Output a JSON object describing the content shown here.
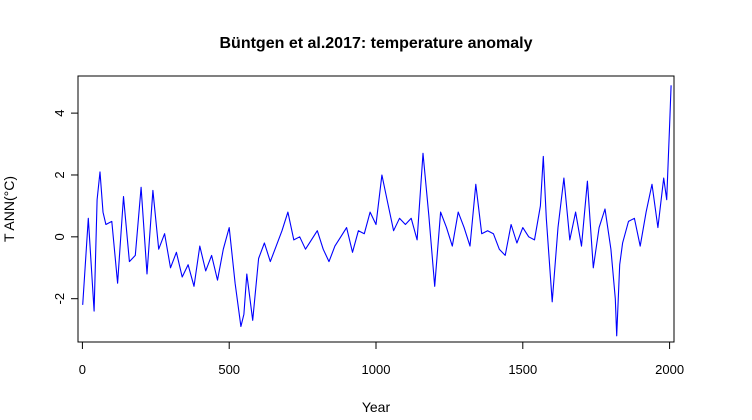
{
  "chart_data": {
    "type": "line",
    "title": "Büntgen et al.2017: temperature anomaly",
    "xlabel": "Year",
    "ylabel": "T ANN(°C)",
    "xlim": [
      -15,
      2015
    ],
    "ylim": [
      -3.4,
      5.2
    ],
    "x_ticks": [
      0,
      500,
      1000,
      1500,
      2000
    ],
    "y_ticks": [
      -2,
      0,
      2,
      4
    ],
    "grid": false,
    "legend": "none",
    "line_color": "#0000ff",
    "series": [
      {
        "x": [
          1,
          20,
          40,
          50,
          60,
          70,
          80,
          100,
          120,
          140,
          160,
          180,
          200,
          220,
          240,
          260,
          280,
          300,
          320,
          340,
          360,
          380,
          400,
          420,
          440,
          460,
          480,
          500,
          520,
          540,
          550,
          560,
          580,
          600,
          620,
          640,
          660,
          680,
          700,
          720,
          740,
          760,
          780,
          800,
          820,
          840,
          860,
          880,
          900,
          920,
          940,
          960,
          980,
          1000,
          1020,
          1040,
          1060,
          1080,
          1100,
          1120,
          1140,
          1160,
          1180,
          1200,
          1220,
          1240,
          1260,
          1280,
          1300,
          1320,
          1340,
          1360,
          1380,
          1400,
          1420,
          1440,
          1460,
          1480,
          1500,
          1520,
          1540,
          1560,
          1570,
          1580,
          1600,
          1620,
          1640,
          1660,
          1680,
          1700,
          1720,
          1740,
          1760,
          1780,
          1800,
          1815,
          1820,
          1830,
          1840,
          1860,
          1880,
          1900,
          1920,
          1940,
          1960,
          1980,
          1990,
          2000,
          2005
        ],
        "values": [
          -2.2,
          0.6,
          -2.4,
          1.2,
          2.1,
          0.8,
          0.4,
          0.5,
          -1.5,
          1.3,
          -0.8,
          -0.6,
          1.6,
          -1.2,
          1.5,
          -0.4,
          0.1,
          -1.0,
          -0.5,
          -1.3,
          -0.9,
          -1.6,
          -0.3,
          -1.1,
          -0.6,
          -1.4,
          -0.4,
          0.3,
          -1.5,
          -2.9,
          -2.5,
          -1.2,
          -2.7,
          -0.7,
          -0.2,
          -0.8,
          -0.3,
          0.2,
          0.8,
          -0.1,
          0.0,
          -0.4,
          -0.1,
          0.2,
          -0.4,
          -0.8,
          -0.3,
          0.0,
          0.3,
          -0.5,
          0.2,
          0.1,
          0.8,
          0.4,
          2.0,
          1.1,
          0.2,
          0.6,
          0.4,
          0.6,
          -0.1,
          2.7,
          0.7,
          -1.6,
          0.8,
          0.3,
          -0.3,
          0.8,
          0.3,
          -0.3,
          1.7,
          0.1,
          0.2,
          0.1,
          -0.4,
          -0.6,
          0.4,
          -0.2,
          0.3,
          0.0,
          -0.1,
          1.0,
          2.6,
          0.6,
          -2.1,
          0.3,
          1.9,
          -0.1,
          0.8,
          -0.3,
          1.8,
          -1.0,
          0.3,
          0.9,
          -0.4,
          -2.0,
          -3.2,
          -0.9,
          -0.2,
          0.5,
          0.6,
          -0.3,
          0.8,
          1.7,
          0.3,
          1.9,
          1.2,
          3.6,
          4.9
        ]
      }
    ]
  }
}
